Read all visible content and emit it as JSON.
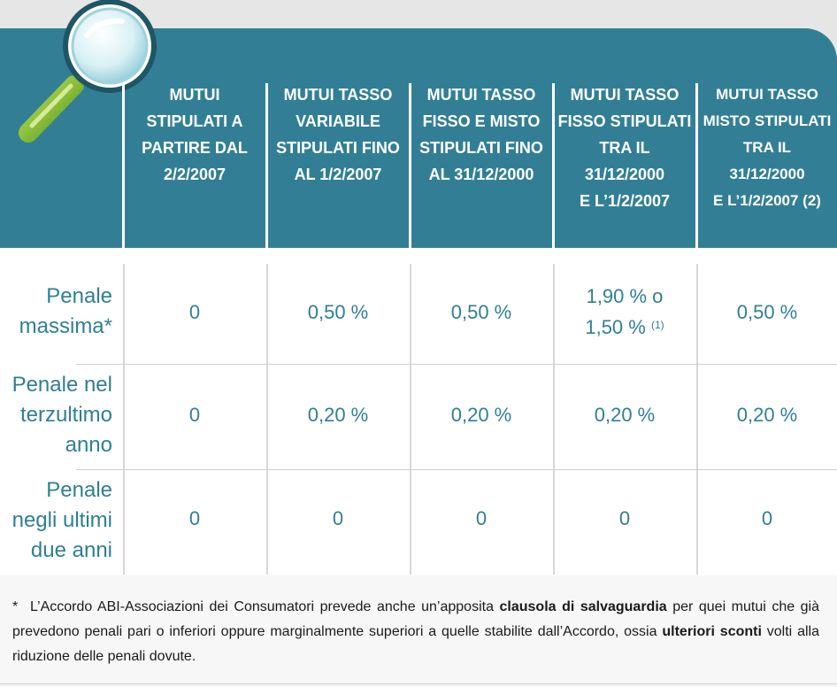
{
  "colors": {
    "header_bg": "#327f95",
    "text_teal": "#2f7f95"
  },
  "icons": {
    "magnifier": "magnifying-glass-icon"
  },
  "columns": [
    {
      "lines": [
        "MUTUI",
        "STIPULATI A",
        "PARTIRE DAL",
        "2/2/2007"
      ]
    },
    {
      "lines": [
        "MUTUI TASSO",
        "VARIABILE",
        "STIPULATI FINO",
        "AL 1/2/2007"
      ]
    },
    {
      "lines": [
        "MUTUI TASSO",
        "FISSO E MISTO",
        "STIPULATI FINO",
        "AL 31/12/2000"
      ]
    },
    {
      "lines": [
        "MUTUI TASSO",
        "FISSO STIPULATI",
        "TRA IL",
        "31/12/2000",
        "E L’1/2/2007"
      ]
    },
    {
      "lines": [
        "MUTUI TASSO",
        "MISTO STIPULATI",
        "TRA IL",
        "31/12/2000",
        "E L’1/2/2007 (2)"
      ]
    }
  ],
  "rows": [
    {
      "label": [
        "Penale",
        "massima*"
      ],
      "values": [
        "0",
        "0,50 %",
        "0,50 %",
        "1,90 % o|1,50 %",
        "0,50 %"
      ],
      "note": "(1)"
    },
    {
      "label": [
        "Penale nel",
        "terzultimo",
        "anno"
      ],
      "values": [
        "0",
        "0,20 %",
        "0,20 %",
        "0,20 %",
        "0,20 %"
      ]
    },
    {
      "label": [
        "Penale",
        "negli ultimi",
        "due anni"
      ],
      "values": [
        "0",
        "0",
        "0",
        "0",
        "0"
      ]
    }
  ],
  "footnote": {
    "star": "*",
    "part1": "L’Accordo ABI-Associazioni dei Consumatori prevede anche un’apposita ",
    "bold1": "clausola di salvaguardia",
    "part2": " per quei mutui che già prevedono penali pari o inferiori oppure marginalmente superiori a quelle stabilite dall’Accordo, ossia ",
    "bold2": "ulteriori sconti",
    "part3": " volti alla riduzione delle penali dovute."
  }
}
